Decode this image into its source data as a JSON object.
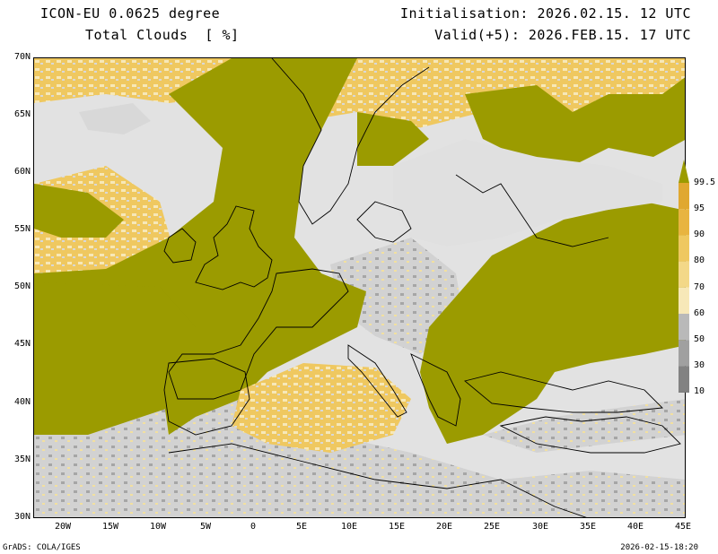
{
  "header": {
    "model": "ICON-EU 0.0625 degree",
    "variable": "Total Clouds  [ %]",
    "init": "Initialisation: 2026.02.15. 12 UTC",
    "valid": "Valid(+5): 2026.FEB.15. 17 UTC"
  },
  "axes": {
    "lat_ticks": [
      "70N",
      "65N",
      "60N",
      "55N",
      "50N",
      "45N",
      "40N",
      "35N",
      "30N"
    ],
    "lon_ticks": [
      "20W",
      "15W",
      "10W",
      "5W",
      "0",
      "5E",
      "10E",
      "15E",
      "20E",
      "25E",
      "30E",
      "35E",
      "40E",
      "45E"
    ]
  },
  "legend": {
    "labels": [
      "99.5",
      "95",
      "90",
      "80",
      "70",
      "60",
      "50",
      "30",
      "10"
    ],
    "colors": [
      "#e0a830",
      "#e8b440",
      "#efc860",
      "#f3d888",
      "#f7e8b8",
      "#b9b9b9",
      "#a0a0a0",
      "#828282",
      "#636363"
    ],
    "full_cover_color": "#9b9b00"
  },
  "footer": {
    "left": "GrADS: COLA/IGES",
    "right": "2026-02-15-18:20"
  }
}
